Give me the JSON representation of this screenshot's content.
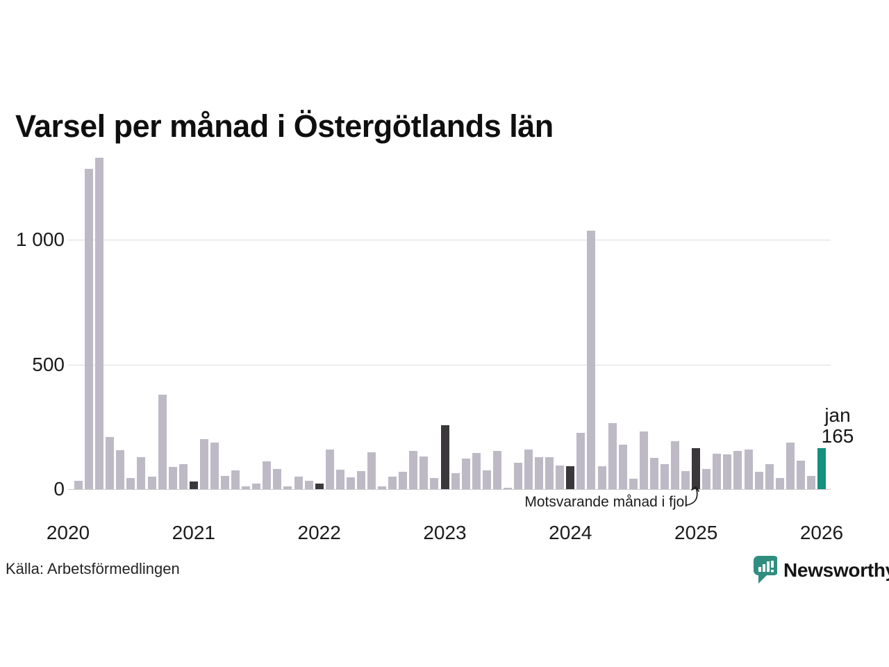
{
  "title": "Varsel per månad i Östergötlands län",
  "source": "Källa: Arbetsförmedlingen",
  "annotation": {
    "text": "Motsvarande månad i fjol"
  },
  "highlight_label": {
    "month": "jan",
    "value": "165"
  },
  "brand": {
    "name": "Newsworthy",
    "color": "#2f8e80",
    "icon": "newsworthy-speech-bubble-barchart-icon"
  },
  "colors": {
    "bar_normal": "#bdbac6",
    "bar_dark": "#3b383c",
    "bar_accent": "#14907e",
    "grid": "#dcdcdc",
    "baseline": "#c9c9c9",
    "text": "#1b1b1b"
  },
  "chart_data": {
    "type": "bar",
    "title": "Varsel per månad i Östergötlands län",
    "xlabel": "",
    "ylabel": "",
    "ylim": [
      0,
      1350
    ],
    "grid": "horizontal",
    "yticks": [
      {
        "value": 0,
        "label": "0"
      },
      {
        "value": 500,
        "label": "500"
      },
      {
        "value": 1000,
        "label": "1 000"
      }
    ],
    "xticks": [
      {
        "month": "2020-01",
        "label": "2020"
      },
      {
        "month": "2021-01",
        "label": "2021"
      },
      {
        "month": "2022-01",
        "label": "2022"
      },
      {
        "month": "2023-01",
        "label": "2023"
      },
      {
        "month": "2024-01",
        "label": "2024"
      },
      {
        "month": "2025-01",
        "label": "2025"
      },
      {
        "month": "2026-01",
        "label": "2026"
      }
    ],
    "x": [
      "2020-01",
      "2020-02",
      "2020-03",
      "2020-04",
      "2020-05",
      "2020-06",
      "2020-07",
      "2020-08",
      "2020-09",
      "2020-10",
      "2020-11",
      "2020-12",
      "2021-01",
      "2021-02",
      "2021-03",
      "2021-04",
      "2021-05",
      "2021-06",
      "2021-07",
      "2021-08",
      "2021-09",
      "2021-10",
      "2021-11",
      "2021-12",
      "2022-01",
      "2022-02",
      "2022-03",
      "2022-04",
      "2022-05",
      "2022-06",
      "2022-07",
      "2022-08",
      "2022-09",
      "2022-10",
      "2022-11",
      "2022-12",
      "2023-01",
      "2023-02",
      "2023-03",
      "2023-04",
      "2023-05",
      "2023-06",
      "2023-07",
      "2023-08",
      "2023-09",
      "2023-10",
      "2023-11",
      "2023-12",
      "2024-01",
      "2024-02",
      "2024-03",
      "2024-04",
      "2024-05",
      "2024-06",
      "2024-07",
      "2024-08",
      "2024-09",
      "2024-10",
      "2024-11",
      "2024-12",
      "2025-01",
      "2025-02",
      "2025-03",
      "2025-04",
      "2025-05",
      "2025-06",
      "2025-07",
      "2025-08",
      "2025-09",
      "2025-10",
      "2025-11",
      "2025-12",
      "2026-01"
    ],
    "values": [
      0,
      34,
      1285,
      1330,
      208,
      156,
      45,
      128,
      50,
      380,
      89,
      100,
      31,
      200,
      186,
      52,
      76,
      10,
      22,
      111,
      80,
      10,
      51,
      33,
      22,
      158,
      78,
      48,
      73,
      147,
      12,
      49,
      69,
      154,
      130,
      45,
      255,
      64,
      122,
      145,
      74,
      152,
      6,
      107,
      160,
      128,
      128,
      96,
      91,
      226,
      1035,
      92,
      265,
      177,
      43,
      232,
      124,
      99,
      192,
      73,
      164,
      82,
      142,
      139,
      154,
      160,
      71,
      101,
      45,
      186,
      114,
      53,
      165
    ],
    "bar_roles": {
      "dark_months": [
        "2021-01",
        "2022-01",
        "2023-01",
        "2024-01",
        "2025-01"
      ],
      "accent_months": [
        "2026-01"
      ]
    },
    "annotations": [
      {
        "text": "Motsvarande månad i fjol",
        "points_to": "2025-01"
      },
      {
        "text": "jan 165",
        "points_to": "2026-01"
      }
    ],
    "legend": "none"
  }
}
